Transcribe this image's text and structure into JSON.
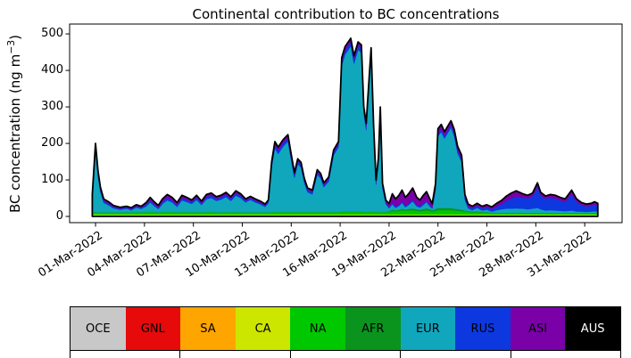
{
  "chart_data": {
    "type": "stacked_area",
    "title": "Continental contribution to BC concentrations",
    "ylabel_pre": "BC concentration (ng m",
    "ylabel_sup": "−3",
    "ylabel_post": ")",
    "x_unit": "days since 01-Mar-2022 00:00 UTC",
    "ylim": [
      -17,
      527
    ],
    "xlim_days": [
      -1.59,
      32.29
    ],
    "grid": false,
    "legend_position": "bottom",
    "outline_color": "#000000",
    "yticks": [
      0,
      100,
      200,
      300,
      400,
      500
    ],
    "xticks": [
      {
        "day": 0,
        "label": "01-Mar-2022"
      },
      {
        "day": 3,
        "label": "04-Mar-2022"
      },
      {
        "day": 6,
        "label": "07-Mar-2022"
      },
      {
        "day": 9,
        "label": "10-Mar-2022"
      },
      {
        "day": 12,
        "label": "13-Mar-2022"
      },
      {
        "day": 15,
        "label": "16-Mar-2022"
      },
      {
        "day": 18,
        "label": "19-Mar-2022"
      },
      {
        "day": 21,
        "label": "22-Mar-2022"
      },
      {
        "day": 24,
        "label": "25-Mar-2022"
      },
      {
        "day": 27,
        "label": "28-Mar-2022"
      },
      {
        "day": 30,
        "label": "31-Mar-2022"
      }
    ],
    "x": [
      -0.2,
      0,
      0.15,
      0.3,
      0.5,
      0.8,
      1.1,
      1.5,
      1.9,
      2.2,
      2.5,
      2.8,
      3.1,
      3.35,
      3.6,
      3.85,
      4.1,
      4.4,
      4.7,
      5,
      5.3,
      5.6,
      5.9,
      6.2,
      6.5,
      6.8,
      7.1,
      7.4,
      7.7,
      8,
      8.3,
      8.6,
      8.9,
      9.2,
      9.5,
      9.8,
      10.1,
      10.4,
      10.6,
      10.8,
      11,
      11.2,
      11.5,
      11.8,
      12,
      12.2,
      12.4,
      12.6,
      12.8,
      13,
      13.3,
      13.6,
      13.8,
      14,
      14.3,
      14.6,
      14.9,
      15.1,
      15.3,
      15.65,
      15.85,
      16.1,
      16.3,
      16.45,
      16.6,
      16.9,
      17.05,
      17.2,
      17.35,
      17.46,
      17.6,
      17.8,
      18,
      18.2,
      18.4,
      18.6,
      18.8,
      19,
      19.2,
      19.45,
      19.7,
      19.9,
      20.1,
      20.3,
      20.5,
      20.65,
      20.85,
      21,
      21.2,
      21.4,
      21.8,
      22,
      22.2,
      22.45,
      22.65,
      22.85,
      23.1,
      23.4,
      23.7,
      24,
      24.3,
      24.6,
      24.9,
      25.2,
      25.5,
      25.8,
      26,
      26.2,
      26.5,
      26.8,
      27.1,
      27.3,
      27.6,
      27.9,
      28.2,
      28.5,
      28.8,
      29.2,
      29.5,
      29.8,
      30.1,
      30.4,
      30.6,
      30.8
    ],
    "series": [
      {
        "name": "OCE",
        "color": "#c8c8c8",
        "label_color": "#000000",
        "constant": 1
      },
      {
        "name": "GNL",
        "color": "#e60a0a",
        "label_color": "#000000",
        "constant": 0.5
      },
      {
        "name": "SA",
        "color": "#ffa500",
        "label_color": "#000000",
        "constant": 1.5
      },
      {
        "name": "CA",
        "color": "#cde600",
        "label_color": "#000000",
        "constant": 2.5
      },
      {
        "name": "NA",
        "color": "#00c800",
        "label_color": "#000000",
        "values": [
          5,
          5,
          5,
          5,
          5,
          5,
          5,
          5,
          5,
          5,
          6,
          5,
          6,
          6,
          6,
          5,
          6,
          6,
          6,
          5,
          6,
          6,
          5,
          6,
          5,
          6,
          6,
          5,
          5,
          6,
          5,
          6,
          5,
          5,
          5,
          5,
          5,
          5,
          5,
          6,
          6,
          6,
          6,
          6,
          6,
          6,
          6,
          6,
          6,
          6,
          6,
          6,
          6,
          6,
          6,
          6,
          6,
          7,
          7,
          7,
          7,
          7,
          7,
          6,
          6,
          7,
          6,
          6,
          6,
          6,
          6,
          6,
          7,
          10,
          9,
          10,
          12,
          10,
          11,
          12,
          10,
          9,
          10,
          11,
          10,
          8,
          10,
          12,
          12,
          12,
          12,
          11,
          10,
          9,
          8,
          7,
          6,
          6,
          5,
          5,
          4,
          4,
          4,
          4,
          4,
          4,
          4,
          4,
          4,
          4,
          4,
          4,
          4,
          4,
          4,
          4,
          4,
          4,
          4,
          4,
          4,
          4,
          4,
          4
        ]
      },
      {
        "name": "AFR",
        "color": "#0a941e",
        "label_color": "#000000",
        "values": [
          1,
          1,
          1,
          1,
          1,
          1,
          1,
          1,
          1,
          1,
          1,
          1,
          1,
          1,
          1,
          1,
          1,
          1,
          1,
          1,
          1,
          1,
          1,
          1,
          1,
          1,
          1,
          1,
          1,
          1,
          1,
          1,
          1,
          1,
          1,
          1,
          1,
          1,
          1,
          1,
          1,
          1,
          1,
          1,
          1,
          1,
          1,
          1,
          1,
          1,
          1,
          1,
          1,
          1,
          1,
          1,
          1,
          1,
          1,
          1,
          1,
          1,
          1,
          1,
          1,
          1,
          1,
          1,
          1,
          1,
          1,
          1,
          2,
          3,
          3,
          3,
          4,
          3,
          4,
          5,
          4,
          4,
          5,
          6,
          5,
          4,
          5,
          6,
          6,
          6,
          6,
          5,
          5,
          4,
          3,
          2,
          2,
          2,
          2,
          2,
          1,
          1,
          1,
          1,
          1,
          1,
          1,
          1,
          1,
          1,
          1,
          1,
          1,
          1,
          1,
          1,
          1,
          1,
          1,
          1,
          1,
          1,
          1,
          1
        ]
      },
      {
        "name": "EUR",
        "color": "#10a7bd",
        "label_color": "#000000",
        "values": [
          38,
          174,
          99,
          56,
          26,
          19,
          11,
          7,
          10,
          6,
          12,
          9,
          15,
          26,
          16,
          9,
          22,
          32,
          26,
          15,
          32,
          27,
          23,
          33,
          20,
          35,
          38,
          31,
          35,
          41,
          31,
          45,
          39,
          27,
          34,
          27,
          22,
          15,
          26,
          123,
          174,
          159,
          179,
          193,
          141,
          93,
          131,
          121,
          80,
          54,
          48,
          102,
          92,
          68,
          83,
          155,
          178,
          400,
          430,
          453,
          405,
          443,
          435,
          269,
          224,
          427,
          220,
          74,
          132,
          270,
          65,
          21,
          8,
          15,
          6,
          10,
          16,
          7,
          11,
          19,
          8,
          6,
          11,
          17,
          7,
          4,
          52,
          196,
          208,
          190,
          220,
          198,
          153,
          131,
          29,
          8,
          4,
          10,
          4,
          6,
          3,
          7,
          9,
          11,
          11,
          12,
          11,
          11,
          9,
          11,
          13,
          9,
          6,
          7,
          6,
          5,
          4,
          6,
          3,
          3,
          2,
          3,
          4,
          3
        ]
      },
      {
        "name": "RUS",
        "color": "#0d38e0",
        "label_color": "#000000",
        "values": [
          6,
          8,
          8,
          7,
          6,
          5,
          4,
          3,
          3,
          3,
          4,
          4,
          5,
          6,
          5,
          4,
          6,
          7,
          6,
          5,
          6,
          6,
          5,
          6,
          5,
          6,
          7,
          6,
          6,
          7,
          6,
          7,
          6,
          5,
          5,
          5,
          4,
          4,
          4,
          8,
          10,
          10,
          10,
          10,
          9,
          8,
          8,
          8,
          7,
          6,
          6,
          7,
          7,
          6,
          7,
          8,
          8,
          12,
          12,
          12,
          12,
          12,
          12,
          10,
          10,
          12,
          9,
          7,
          8,
          9,
          6,
          5,
          4,
          4,
          4,
          4,
          4,
          4,
          4,
          4,
          4,
          4,
          4,
          4,
          4,
          3,
          5,
          8,
          8,
          8,
          8,
          8,
          8,
          8,
          6,
          5,
          5,
          6,
          6,
          7,
          7,
          10,
          14,
          22,
          28,
          32,
          32,
          30,
          30,
          34,
          58,
          38,
          32,
          34,
          33,
          28,
          25,
          45,
          26,
          18,
          15,
          16,
          18,
          16
        ]
      },
      {
        "name": "ASI",
        "color": "#7a00a8",
        "label_color": "#000000",
        "values": [
          4,
          6,
          6,
          5,
          4,
          4,
          3,
          3,
          3,
          3,
          3,
          3,
          5,
          7,
          6,
          5,
          7,
          8,
          7,
          6,
          7,
          6,
          5,
          6,
          5,
          6,
          6,
          5,
          5,
          5,
          5,
          5,
          5,
          4,
          4,
          4,
          4,
          3,
          3,
          6,
          8,
          8,
          8,
          8,
          7,
          6,
          6,
          6,
          5,
          5,
          5,
          6,
          6,
          5,
          5,
          6,
          6,
          9,
          9,
          9,
          9,
          9,
          9,
          8,
          8,
          9,
          8,
          6,
          7,
          8,
          6,
          6,
          8,
          24,
          20,
          25,
          30,
          22,
          26,
          32,
          20,
          16,
          22,
          24,
          16,
          10,
          12,
          12,
          12,
          10,
          10,
          10,
          10,
          10,
          8,
          6,
          5,
          6,
          5,
          6,
          5,
          8,
          10,
          12,
          14,
          15,
          12,
          10,
          8,
          8,
          10,
          8,
          7,
          8,
          8,
          8,
          8,
          10,
          8,
          6,
          6,
          6,
          7,
          6
        ]
      },
      {
        "name": "AUS",
        "color": "#000000",
        "label_color": "#ffffff",
        "constant": 0.5
      }
    ]
  }
}
